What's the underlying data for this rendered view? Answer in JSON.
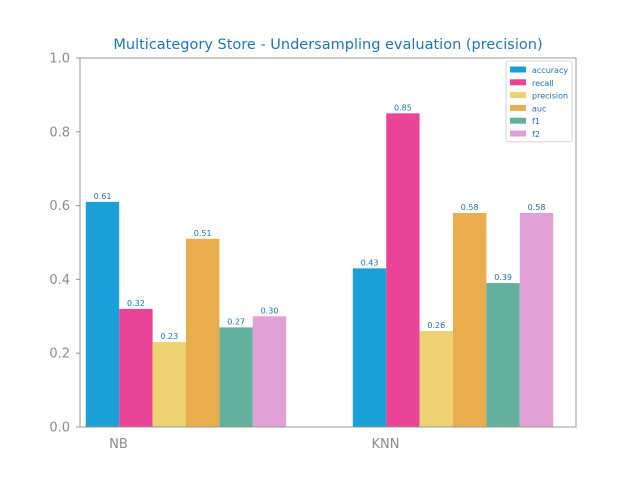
{
  "chart_data": {
    "type": "bar",
    "title": "Multicategory Store - Undersampling evaluation (precision)",
    "xlabel": "",
    "ylabel": "",
    "categories": [
      "NB",
      "KNN"
    ],
    "ylim": [
      0,
      1.0
    ],
    "yticks": [
      0.0,
      0.2,
      0.4,
      0.6,
      0.8,
      1.0
    ],
    "grid": false,
    "legend_position": "top-right",
    "series": [
      {
        "name": "accuracy",
        "color": "#1a9fd6",
        "values": [
          0.61,
          0.43
        ],
        "labels": [
          "0.61",
          "0.43"
        ]
      },
      {
        "name": "recall",
        "color": "#e94596",
        "values": [
          0.32,
          0.85
        ],
        "labels": [
          "0.32",
          "0.85"
        ]
      },
      {
        "name": "precision",
        "color": "#ecd272",
        "values": [
          0.23,
          0.26
        ],
        "labels": [
          "0.23",
          "0.26"
        ]
      },
      {
        "name": "auc",
        "color": "#e8ad4e",
        "values": [
          0.51,
          0.58
        ],
        "labels": [
          "0.51",
          "0.58"
        ]
      },
      {
        "name": "f1",
        "color": "#63b19c",
        "values": [
          0.27,
          0.39
        ],
        "labels": [
          "0.27",
          "0.39"
        ]
      },
      {
        "name": "f2",
        "color": "#e0a2d5",
        "values": [
          0.3,
          0.58
        ],
        "labels": [
          "0.30",
          "0.58"
        ]
      }
    ]
  }
}
